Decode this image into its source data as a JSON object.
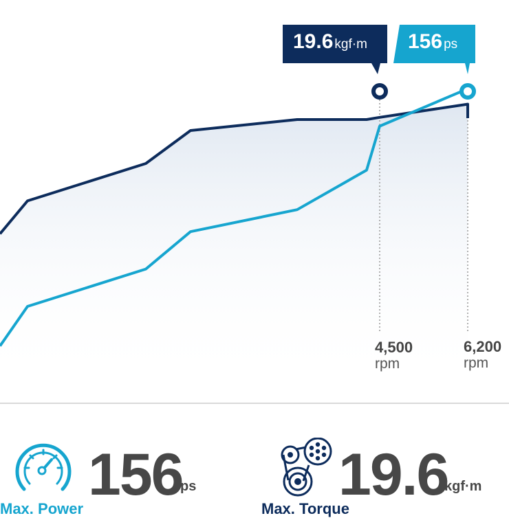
{
  "chart_data": {
    "type": "line",
    "title": "",
    "xlabel": "",
    "ylabel": "",
    "series": [
      {
        "key": "torque",
        "color": "#0d2c5c",
        "x": [
          0,
          1,
          2,
          3,
          4,
          5,
          6,
          7,
          8
        ],
        "values": [
          53,
          68,
          85,
          100,
          105,
          105,
          106,
          112,
          119
        ]
      },
      {
        "key": "power",
        "color": "#16a5cf",
        "x": [
          0,
          1,
          2,
          3,
          4,
          5,
          6,
          7,
          8
        ],
        "values": [
          2,
          20,
          37,
          54,
          64,
          82,
          102,
          119,
          119
        ]
      }
    ],
    "peaks": [
      {
        "key": "torque",
        "rpm": "4,500",
        "rpm_unit": "rpm",
        "value": "19.6",
        "unit": "kgf·m",
        "color": "#0d2c5c"
      },
      {
        "key": "power",
        "rpm": "6,200",
        "rpm_unit": "rpm",
        "value": "156",
        "unit": "ps",
        "color": "#16a5cf"
      }
    ]
  },
  "specs": {
    "power": {
      "value": "156",
      "unit": "ps",
      "label": "Max. Power",
      "icon": "speedometer-icon",
      "color": "#16a5cf"
    },
    "torque": {
      "value": "19.6",
      "unit": "kgf·m",
      "label": "Max. Torque",
      "icon": "engine-belt-icon",
      "color": "#0d2c5c"
    }
  }
}
